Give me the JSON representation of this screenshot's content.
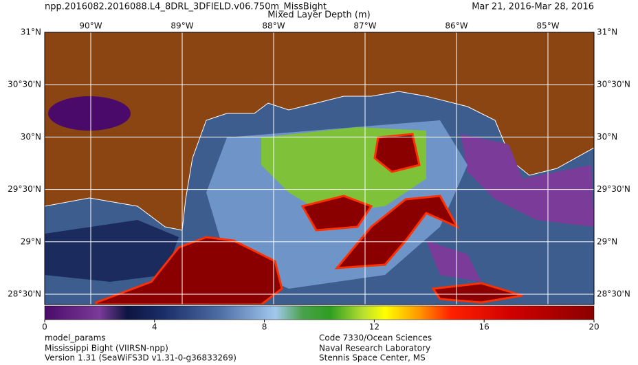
{
  "header": {
    "title": "npp.2016082.2016088.L4_8DRL_3DFIELD.v06.750m_MissBight",
    "date_range": "Mar 21, 2016-Mar 28, 2016",
    "variable": "Mixed Layer Depth (m)"
  },
  "map": {
    "lon_labels": [
      "90°W",
      "89°W",
      "88°W",
      "87°W",
      "86°W",
      "85°W"
    ],
    "lat_labels": [
      "31°N",
      "30°30'N",
      "30°N",
      "29°30'N",
      "29°N",
      "28°30'N"
    ]
  },
  "colorbar": {
    "lim": [
      0,
      20
    ],
    "ticks": [
      0,
      4,
      8,
      12,
      16,
      20
    ]
  },
  "footer": {
    "left": [
      "model_params",
      "Mississippi Bight (VIIRSN-npp)",
      "Version 1.31 (SeaWiFS3D v1.31-0-g36833269)"
    ],
    "right": [
      "Code 7330/Ocean Sciences",
      "Naval Research Laboratory",
      "Stennis Space Center, MS"
    ]
  }
}
